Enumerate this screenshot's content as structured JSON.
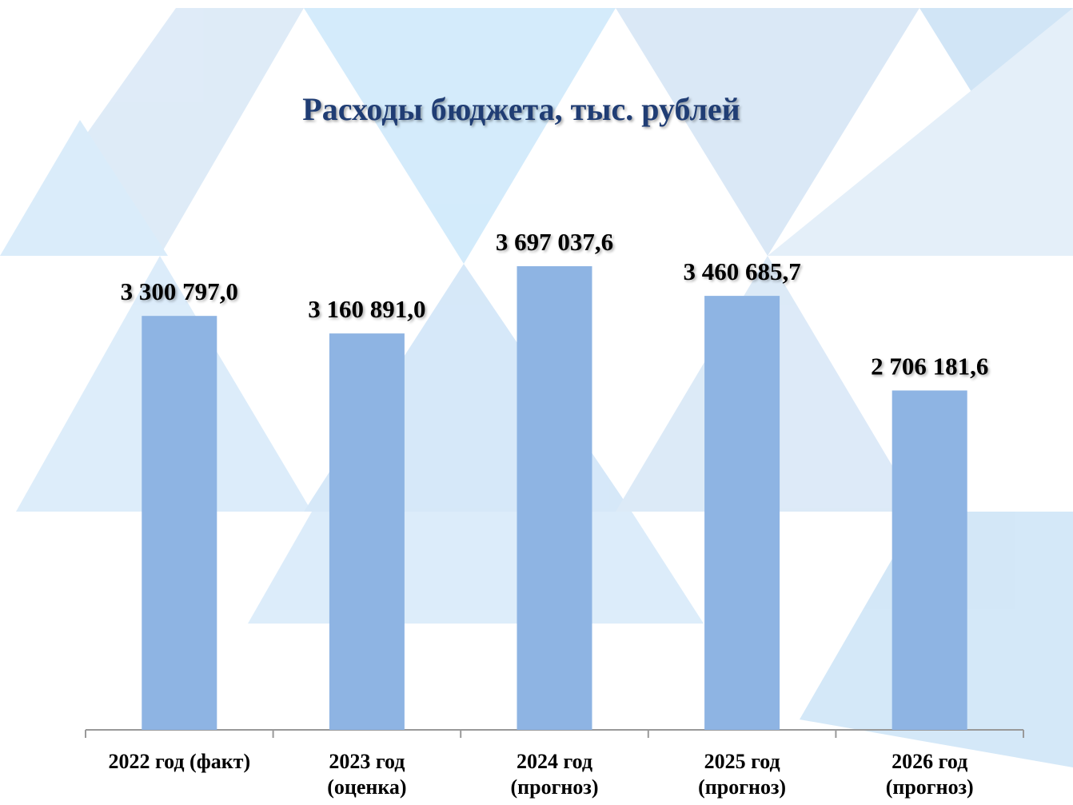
{
  "chart_data": {
    "type": "bar",
    "title": "Расходы бюджета, тыс. рублей",
    "categories": [
      "2022 год (факт)",
      "2023 год\n(оценка)",
      "2024 год\n(прогноз)",
      "2025 год\n(прогноз)",
      "2026 год\n(прогноз)"
    ],
    "values": [
      3300797.0,
      3160891.0,
      3697037.6,
      3460685.7,
      2706181.6
    ],
    "value_labels": [
      "3 300 797,0",
      "3 160 891,0",
      "3 697 037,6",
      "3 460 685,7",
      "2 706 181,6"
    ],
    "color": "#8eb4e3",
    "ylim": [
      0,
      4000000
    ]
  }
}
